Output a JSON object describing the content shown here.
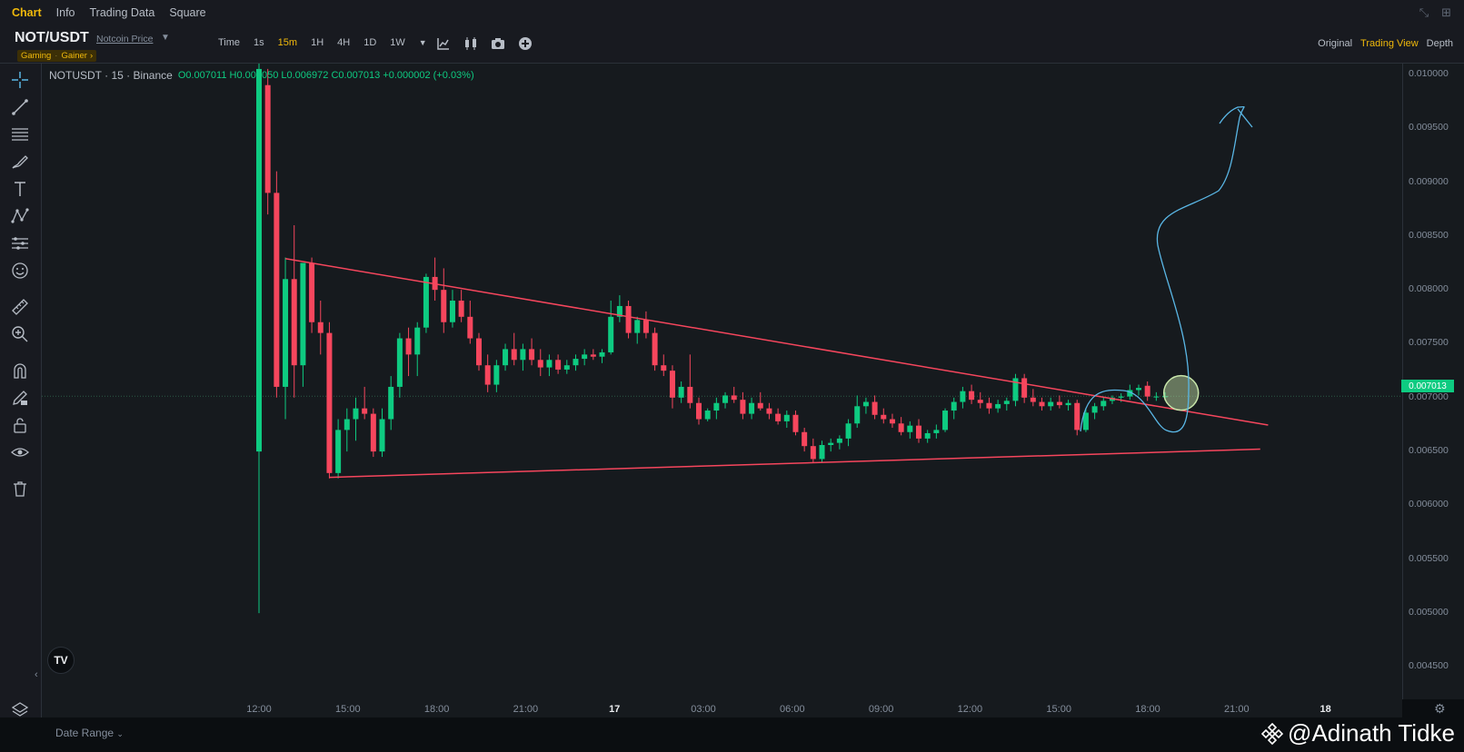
{
  "nav": {
    "tabs": [
      {
        "label": "Chart",
        "active": true
      },
      {
        "label": "Info",
        "active": false
      },
      {
        "label": "Trading Data",
        "active": false
      },
      {
        "label": "Square",
        "active": false
      }
    ]
  },
  "header": {
    "pair": "NOT/USDT",
    "price_source": "Notcoin Price",
    "tag_1": "Gaming",
    "tag_2": "Gainer",
    "tag_arrow": "›",
    "intervals": [
      {
        "label": "Time",
        "active": false
      },
      {
        "label": "1s",
        "active": false
      },
      {
        "label": "15m",
        "active": true
      },
      {
        "label": "1H",
        "active": false
      },
      {
        "label": "4H",
        "active": false
      },
      {
        "label": "1D",
        "active": false
      },
      {
        "label": "1W",
        "active": false
      }
    ],
    "views": [
      {
        "label": "Original",
        "active": false
      },
      {
        "label": "Trading View",
        "active": true
      },
      {
        "label": "Depth",
        "active": false
      }
    ]
  },
  "legend": {
    "symbol": "NOTUSDT · 15 · Binance",
    "ohlc": "O0.007011  H0.007050  L0.006972  C0.007013  +0.000002 (+0.03%)"
  },
  "price_axis": {
    "labels": [
      "0.010000",
      "0.009500",
      "0.009000",
      "0.008500",
      "0.008000",
      "0.007500",
      "0.007000",
      "0.006500",
      "0.006000",
      "0.005500",
      "0.005000",
      "0.004500"
    ],
    "current_price": "0.007013"
  },
  "time_axis": {
    "labels": [
      {
        "t": "12:00",
        "bold": false
      },
      {
        "t": "15:00",
        "bold": false
      },
      {
        "t": "18:00",
        "bold": false
      },
      {
        "t": "21:00",
        "bold": false
      },
      {
        "t": "17",
        "bold": true
      },
      {
        "t": "03:00",
        "bold": false
      },
      {
        "t": "06:00",
        "bold": false
      },
      {
        "t": "09:00",
        "bold": false
      },
      {
        "t": "12:00",
        "bold": false
      },
      {
        "t": "15:00",
        "bold": false
      },
      {
        "t": "18:00",
        "bold": false
      },
      {
        "t": "21:00",
        "bold": false
      },
      {
        "t": "18",
        "bold": true
      }
    ]
  },
  "bottom": {
    "date_range": "Date Range",
    "watermark": "@Adinath Tidke"
  },
  "colors": {
    "up": "#0ecb81",
    "down": "#f6465d",
    "trendline": "#f6465d",
    "drawing": "#5ab7e6",
    "accent": "#f0b90b"
  },
  "chart_data": {
    "type": "candlestick",
    "symbol": "NOTUSDT",
    "interval": "15",
    "ylim": [
      0.0042,
      0.0101
    ],
    "candles": [
      {
        "o": 0.0065,
        "h": 0.0101,
        "l": 0.005,
        "c": 0.01005
      },
      {
        "o": 0.0099,
        "h": 0.01005,
        "l": 0.0087,
        "c": 0.0089
      },
      {
        "o": 0.0089,
        "h": 0.0091,
        "l": 0.007,
        "c": 0.0071
      },
      {
        "o": 0.0071,
        "h": 0.0083,
        "l": 0.0068,
        "c": 0.0081
      },
      {
        "o": 0.0081,
        "h": 0.0086,
        "l": 0.007,
        "c": 0.0073
      },
      {
        "o": 0.0073,
        "h": 0.0082,
        "l": 0.0071,
        "c": 0.00825
      },
      {
        "o": 0.00825,
        "h": 0.0083,
        "l": 0.0076,
        "c": 0.0077
      },
      {
        "o": 0.0077,
        "h": 0.0079,
        "l": 0.0074,
        "c": 0.0076
      },
      {
        "o": 0.0076,
        "h": 0.0077,
        "l": 0.00625,
        "c": 0.0063
      },
      {
        "o": 0.0063,
        "h": 0.0068,
        "l": 0.00625,
        "c": 0.0067
      },
      {
        "o": 0.0067,
        "h": 0.0069,
        "l": 0.0065,
        "c": 0.0068
      },
      {
        "o": 0.0068,
        "h": 0.007,
        "l": 0.0066,
        "c": 0.0069
      },
      {
        "o": 0.0069,
        "h": 0.0071,
        "l": 0.0068,
        "c": 0.00685
      },
      {
        "o": 0.00685,
        "h": 0.0069,
        "l": 0.00645,
        "c": 0.0065
      },
      {
        "o": 0.0065,
        "h": 0.0069,
        "l": 0.00645,
        "c": 0.0068
      },
      {
        "o": 0.0068,
        "h": 0.0072,
        "l": 0.0067,
        "c": 0.0071
      },
      {
        "o": 0.0071,
        "h": 0.0076,
        "l": 0.007,
        "c": 0.00755
      },
      {
        "o": 0.00755,
        "h": 0.00765,
        "l": 0.0072,
        "c": 0.0074
      },
      {
        "o": 0.0074,
        "h": 0.0077,
        "l": 0.0072,
        "c": 0.00765
      },
      {
        "o": 0.00765,
        "h": 0.00815,
        "l": 0.0076,
        "c": 0.00812
      },
      {
        "o": 0.00812,
        "h": 0.0083,
        "l": 0.0079,
        "c": 0.008
      },
      {
        "o": 0.008,
        "h": 0.0082,
        "l": 0.0076,
        "c": 0.0077
      },
      {
        "o": 0.0077,
        "h": 0.008,
        "l": 0.00765,
        "c": 0.0079
      },
      {
        "o": 0.0079,
        "h": 0.008,
        "l": 0.0077,
        "c": 0.00775
      },
      {
        "o": 0.00775,
        "h": 0.0079,
        "l": 0.0075,
        "c": 0.00755
      },
      {
        "o": 0.00755,
        "h": 0.0076,
        "l": 0.00725,
        "c": 0.0073
      },
      {
        "o": 0.0073,
        "h": 0.0074,
        "l": 0.00705,
        "c": 0.00712
      },
      {
        "o": 0.00712,
        "h": 0.00735,
        "l": 0.00705,
        "c": 0.0073
      },
      {
        "o": 0.0073,
        "h": 0.0075,
        "l": 0.00725,
        "c": 0.00745
      },
      {
        "o": 0.00745,
        "h": 0.0076,
        "l": 0.0073,
        "c": 0.00735
      },
      {
        "o": 0.00735,
        "h": 0.0075,
        "l": 0.00725,
        "c": 0.00745
      },
      {
        "o": 0.00745,
        "h": 0.00755,
        "l": 0.0073,
        "c": 0.00735
      },
      {
        "o": 0.00735,
        "h": 0.00745,
        "l": 0.0072,
        "c": 0.00728
      },
      {
        "o": 0.00728,
        "h": 0.0074,
        "l": 0.0072,
        "c": 0.00735
      },
      {
        "o": 0.00735,
        "h": 0.0074,
        "l": 0.00722,
        "c": 0.00726
      },
      {
        "o": 0.00726,
        "h": 0.00735,
        "l": 0.00722,
        "c": 0.0073
      },
      {
        "o": 0.0073,
        "h": 0.0074,
        "l": 0.00725,
        "c": 0.00736
      },
      {
        "o": 0.00736,
        "h": 0.00745,
        "l": 0.0073,
        "c": 0.0074
      },
      {
        "o": 0.0074,
        "h": 0.00745,
        "l": 0.00735,
        "c": 0.00738
      },
      {
        "o": 0.00738,
        "h": 0.00745,
        "l": 0.00732,
        "c": 0.00742
      },
      {
        "o": 0.00742,
        "h": 0.0079,
        "l": 0.0074,
        "c": 0.00775
      },
      {
        "o": 0.00775,
        "h": 0.00795,
        "l": 0.0077,
        "c": 0.00785
      },
      {
        "o": 0.00785,
        "h": 0.0079,
        "l": 0.00755,
        "c": 0.0076
      },
      {
        "o": 0.0076,
        "h": 0.00775,
        "l": 0.0075,
        "c": 0.00772
      },
      {
        "o": 0.00772,
        "h": 0.0078,
        "l": 0.00755,
        "c": 0.0076
      },
      {
        "o": 0.0076,
        "h": 0.00765,
        "l": 0.00725,
        "c": 0.0073
      },
      {
        "o": 0.0073,
        "h": 0.0074,
        "l": 0.0072,
        "c": 0.00725
      },
      {
        "o": 0.00725,
        "h": 0.0073,
        "l": 0.0069,
        "c": 0.007
      },
      {
        "o": 0.007,
        "h": 0.00715,
        "l": 0.00695,
        "c": 0.0071
      },
      {
        "o": 0.0071,
        "h": 0.0074,
        "l": 0.0069,
        "c": 0.00695
      },
      {
        "o": 0.00695,
        "h": 0.007,
        "l": 0.00675,
        "c": 0.0068
      },
      {
        "o": 0.0068,
        "h": 0.0069,
        "l": 0.00678,
        "c": 0.00688
      },
      {
        "o": 0.00688,
        "h": 0.007,
        "l": 0.0068,
        "c": 0.00695
      },
      {
        "o": 0.00695,
        "h": 0.00705,
        "l": 0.0069,
        "c": 0.00702
      },
      {
        "o": 0.00702,
        "h": 0.0071,
        "l": 0.00695,
        "c": 0.00698
      },
      {
        "o": 0.00698,
        "h": 0.00705,
        "l": 0.0068,
        "c": 0.00685
      },
      {
        "o": 0.00685,
        "h": 0.007,
        "l": 0.0068,
        "c": 0.00695
      },
      {
        "o": 0.00695,
        "h": 0.00705,
        "l": 0.00688,
        "c": 0.0069
      },
      {
        "o": 0.0069,
        "h": 0.00695,
        "l": 0.0068,
        "c": 0.00685
      },
      {
        "o": 0.00685,
        "h": 0.0069,
        "l": 0.00675,
        "c": 0.00678
      },
      {
        "o": 0.00678,
        "h": 0.00688,
        "l": 0.00672,
        "c": 0.00684
      },
      {
        "o": 0.00684,
        "h": 0.00688,
        "l": 0.00665,
        "c": 0.00668
      },
      {
        "o": 0.00668,
        "h": 0.00672,
        "l": 0.0065,
        "c": 0.00655
      },
      {
        "o": 0.00655,
        "h": 0.00662,
        "l": 0.0064,
        "c": 0.00643
      },
      {
        "o": 0.00643,
        "h": 0.0066,
        "l": 0.0064,
        "c": 0.00656
      },
      {
        "o": 0.00656,
        "h": 0.00662,
        "l": 0.0065,
        "c": 0.00658
      },
      {
        "o": 0.00658,
        "h": 0.00665,
        "l": 0.00652,
        "c": 0.00662
      },
      {
        "o": 0.00662,
        "h": 0.0068,
        "l": 0.00655,
        "c": 0.00676
      },
      {
        "o": 0.00676,
        "h": 0.00702,
        "l": 0.00672,
        "c": 0.00692
      },
      {
        "o": 0.00692,
        "h": 0.007,
        "l": 0.00685,
        "c": 0.00696
      },
      {
        "o": 0.00696,
        "h": 0.00702,
        "l": 0.0068,
        "c": 0.00684
      },
      {
        "o": 0.00684,
        "h": 0.0069,
        "l": 0.00676,
        "c": 0.0068
      },
      {
        "o": 0.0068,
        "h": 0.00685,
        "l": 0.00672,
        "c": 0.00676
      },
      {
        "o": 0.00676,
        "h": 0.00682,
        "l": 0.00665,
        "c": 0.00668
      },
      {
        "o": 0.00668,
        "h": 0.00678,
        "l": 0.00662,
        "c": 0.00674
      },
      {
        "o": 0.00674,
        "h": 0.0068,
        "l": 0.00658,
        "c": 0.00662
      },
      {
        "o": 0.00662,
        "h": 0.0067,
        "l": 0.00658,
        "c": 0.00667
      },
      {
        "o": 0.00667,
        "h": 0.00675,
        "l": 0.00662,
        "c": 0.0067
      },
      {
        "o": 0.0067,
        "h": 0.0069,
        "l": 0.00668,
        "c": 0.00688
      },
      {
        "o": 0.00688,
        "h": 0.007,
        "l": 0.0068,
        "c": 0.00696
      },
      {
        "o": 0.00696,
        "h": 0.0071,
        "l": 0.0069,
        "c": 0.00706
      },
      {
        "o": 0.00706,
        "h": 0.00712,
        "l": 0.00694,
        "c": 0.00698
      },
      {
        "o": 0.00698,
        "h": 0.00705,
        "l": 0.0069,
        "c": 0.00695
      },
      {
        "o": 0.00695,
        "h": 0.007,
        "l": 0.00685,
        "c": 0.0069
      },
      {
        "o": 0.0069,
        "h": 0.00698,
        "l": 0.00686,
        "c": 0.00694
      },
      {
        "o": 0.00694,
        "h": 0.007,
        "l": 0.00688,
        "c": 0.00697
      },
      {
        "o": 0.00697,
        "h": 0.00722,
        "l": 0.00692,
        "c": 0.00718
      },
      {
        "o": 0.00718,
        "h": 0.00722,
        "l": 0.00695,
        "c": 0.007
      },
      {
        "o": 0.007,
        "h": 0.00708,
        "l": 0.00692,
        "c": 0.00696
      },
      {
        "o": 0.00696,
        "h": 0.007,
        "l": 0.00688,
        "c": 0.00692
      },
      {
        "o": 0.00692,
        "h": 0.007,
        "l": 0.00688,
        "c": 0.00696
      },
      {
        "o": 0.00696,
        "h": 0.00702,
        "l": 0.0069,
        "c": 0.00693
      },
      {
        "o": 0.00693,
        "h": 0.00698,
        "l": 0.00688,
        "c": 0.00695
      },
      {
        "o": 0.00695,
        "h": 0.00698,
        "l": 0.00665,
        "c": 0.0067
      },
      {
        "o": 0.0067,
        "h": 0.0069,
        "l": 0.00668,
        "c": 0.00686
      },
      {
        "o": 0.00686,
        "h": 0.00695,
        "l": 0.0068,
        "c": 0.00692
      },
      {
        "o": 0.00692,
        "h": 0.007,
        "l": 0.00688,
        "c": 0.00697
      },
      {
        "o": 0.00697,
        "h": 0.00702,
        "l": 0.00694,
        "c": 0.007
      },
      {
        "o": 0.007,
        "h": 0.00704,
        "l": 0.00696,
        "c": 0.00701
      },
      {
        "o": 0.00701,
        "h": 0.00712,
        "l": 0.00698,
        "c": 0.00707
      },
      {
        "o": 0.00707,
        "h": 0.00712,
        "l": 0.00702,
        "c": 0.00709
      },
      {
        "o": 0.00711,
        "h": 0.00715,
        "l": 0.00697,
        "c": 0.00701
      },
      {
        "o": 0.00701,
        "h": 0.00705,
        "l": 0.00697,
        "c": 0.00701
      },
      {
        "o": 0.007011,
        "h": 0.00705,
        "l": 0.006972,
        "c": 0.007013
      }
    ],
    "drawings": {
      "upper_trendline": [
        {
          "candle": 3,
          "price": 0.00829
        },
        {
          "candle": 108,
          "price": 0.00672
        }
      ],
      "lower_trendline": [
        {
          "candle": 8,
          "price": 0.00626
        },
        {
          "candle": 107,
          "price": 0.00653
        }
      ],
      "highlight_circle": {
        "candle": 104,
        "price": 0.00706
      },
      "freehand_projection": true
    },
    "current_price": 0.007013
  }
}
